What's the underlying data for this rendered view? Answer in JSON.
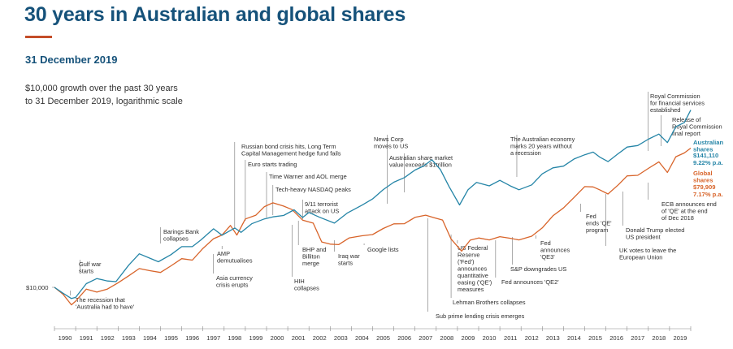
{
  "header": {
    "title": "30 years in Australian and global shares",
    "date": "31 December 2019",
    "subtitle_line1": "$10,000 growth over the past 30 years",
    "subtitle_line2": "to 31 December 2019, logarithmic scale"
  },
  "colors": {
    "title": "#16527a",
    "rule": "#c44d28",
    "australian": "#2585a7",
    "global": "#d8642a",
    "axis": "#888888",
    "annotation": "#2d2d2d"
  },
  "chart_data": {
    "type": "line",
    "scale": "log",
    "grid": false,
    "x_range": [
      1990,
      2020
    ],
    "x_ticks": [
      "1990",
      "1991",
      "1992",
      "1993",
      "1994",
      "1995",
      "1996",
      "1997",
      "1998",
      "1999",
      "2000",
      "2001",
      "2002",
      "2003",
      "2004",
      "2005",
      "2006",
      "2007",
      "2008",
      "2009",
      "2010",
      "2011",
      "2012",
      "2013",
      "2014",
      "2015",
      "2016",
      "2017",
      "2018",
      "2019"
    ],
    "y_label": "$10,000",
    "start_value": 10000,
    "series": [
      {
        "name": "Australian shares",
        "value_label": "$141,110",
        "return_label": "9.22% p.a.",
        "color": "#2585a7",
        "points": [
          [
            1990,
            10000
          ],
          [
            1990.4,
            9300
          ],
          [
            1990.8,
            8300
          ],
          [
            1991.0,
            8700
          ],
          [
            1991.5,
            10600
          ],
          [
            1992,
            11200
          ],
          [
            1992.5,
            11200
          ],
          [
            1992.9,
            10800
          ],
          [
            1993.5,
            13800
          ],
          [
            1994,
            16800
          ],
          [
            1994.5,
            15200
          ],
          [
            1994.9,
            14700
          ],
          [
            1995.5,
            16500
          ],
          [
            1996,
            18000
          ],
          [
            1996.5,
            18600
          ],
          [
            1996.9,
            20300
          ],
          [
            1997.5,
            23600
          ],
          [
            1997.9,
            22200
          ],
          [
            1998.5,
            24000
          ],
          [
            1998.8,
            22600
          ],
          [
            1999.3,
            26300
          ],
          [
            1999.9,
            27300
          ],
          [
            2000.3,
            28800
          ],
          [
            2000.8,
            29500
          ],
          [
            2001.3,
            31200
          ],
          [
            2001.7,
            28800
          ],
          [
            2002.0,
            30500
          ],
          [
            2002.5,
            28100
          ],
          [
            2003.2,
            26600
          ],
          [
            2003.8,
            29900
          ],
          [
            2004.5,
            34000
          ],
          [
            2005,
            38000
          ],
          [
            2005.5,
            42200
          ],
          [
            2006,
            48500
          ],
          [
            2006.5,
            51800
          ],
          [
            2007,
            56600
          ],
          [
            2007.4,
            62200
          ],
          [
            2007.8,
            66800
          ],
          [
            2008.2,
            57300
          ],
          [
            2008.6,
            46000
          ],
          [
            2009.1,
            33700
          ],
          [
            2009.5,
            43000
          ],
          [
            2009.9,
            48500
          ],
          [
            2010.5,
            44600
          ],
          [
            2011,
            50000
          ],
          [
            2011.5,
            45600
          ],
          [
            2011.9,
            42200
          ],
          [
            2012.5,
            47000
          ],
          [
            2013,
            54000
          ],
          [
            2013.5,
            59100
          ],
          [
            2014,
            62200
          ],
          [
            2014.5,
            66800
          ],
          [
            2015,
            72700
          ],
          [
            2015.4,
            76200
          ],
          [
            2015.7,
            68700
          ],
          [
            2016.1,
            66300
          ],
          [
            2016.6,
            74000
          ],
          [
            2017,
            80000
          ],
          [
            2017.5,
            84700
          ],
          [
            2018,
            90300
          ],
          [
            2018.5,
            98100
          ],
          [
            2018.9,
            88300
          ],
          [
            2019.3,
            108000
          ],
          [
            2019.7,
            118000
          ],
          [
            2020,
            141110
          ]
        ]
      },
      {
        "name": "Global shares",
        "value_label": "$79,909",
        "return_label": "7.17% p.a.",
        "color": "#d8642a",
        "points": [
          [
            1990,
            10000
          ],
          [
            1990.4,
            9000
          ],
          [
            1990.8,
            7600
          ],
          [
            1991.0,
            8300
          ],
          [
            1991.5,
            9600
          ],
          [
            1992,
            9300
          ],
          [
            1992.5,
            9900
          ],
          [
            1993,
            10500
          ],
          [
            1993.5,
            12000
          ],
          [
            1994,
            13300
          ],
          [
            1994.5,
            12600
          ],
          [
            1995,
            12700
          ],
          [
            1995.5,
            13700
          ],
          [
            1996,
            15200
          ],
          [
            1996.5,
            15300
          ],
          [
            1997,
            17600
          ],
          [
            1997.5,
            20700
          ],
          [
            1997.9,
            22100
          ],
          [
            1998.3,
            24700
          ],
          [
            1998.6,
            22100
          ],
          [
            1999,
            27800
          ],
          [
            1999.5,
            28900
          ],
          [
            1999.9,
            34000
          ],
          [
            2000.3,
            35000
          ],
          [
            2000.8,
            33400
          ],
          [
            2001.2,
            32500
          ],
          [
            2001.7,
            26800
          ],
          [
            2002.2,
            26200
          ],
          [
            2002.6,
            19900
          ],
          [
            2003.0,
            18700
          ],
          [
            2003.4,
            19200
          ],
          [
            2003.9,
            20900
          ],
          [
            2004.5,
            21300
          ],
          [
            2005,
            22400
          ],
          [
            2005.5,
            23800
          ],
          [
            2006,
            25700
          ],
          [
            2006.5,
            26300
          ],
          [
            2007,
            27900
          ],
          [
            2007.5,
            29600
          ],
          [
            2007.9,
            28500
          ],
          [
            2008.3,
            26800
          ],
          [
            2008.7,
            20900
          ],
          [
            2009.2,
            17100
          ],
          [
            2009.6,
            20000
          ],
          [
            2010,
            21300
          ],
          [
            2010.5,
            20000
          ],
          [
            2011,
            21300
          ],
          [
            2011.5,
            21100
          ],
          [
            2011.9,
            19900
          ],
          [
            2012.5,
            21700
          ],
          [
            2013,
            24400
          ],
          [
            2013.5,
            28600
          ],
          [
            2014,
            33300
          ],
          [
            2014.5,
            38000
          ],
          [
            2015,
            44600
          ],
          [
            2015.4,
            45600
          ],
          [
            2015.7,
            42200
          ],
          [
            2016.1,
            40400
          ],
          [
            2016.6,
            47000
          ],
          [
            2017,
            51800
          ],
          [
            2017.5,
            54000
          ],
          [
            2018,
            59100
          ],
          [
            2018.5,
            64100
          ],
          [
            2018.9,
            56600
          ],
          [
            2019.3,
            69600
          ],
          [
            2019.7,
            74000
          ],
          [
            2020,
            79909
          ]
        ]
      }
    ],
    "annotations": [
      {
        "x": 1990.75,
        "lines": [
          "The recession that",
          "'Australia had to have'"
        ]
      },
      {
        "x": 1991.2,
        "lines": [
          "Gulf war",
          "starts"
        ]
      },
      {
        "x": 1995.0,
        "lines": [
          "Barings Bank",
          "collapses"
        ]
      },
      {
        "x": 1997.5,
        "lines": [
          "Asia currency",
          "crisis erupts"
        ]
      },
      {
        "x": 1997.9,
        "lines": [
          "AMP",
          "demutualises"
        ]
      },
      {
        "x": 1998.5,
        "lines": [
          "Russian bond crisis hits, Long Term",
          "Capital Management hedge fund fails"
        ]
      },
      {
        "x": 1999.0,
        "lines": [
          "Euro starts trading"
        ]
      },
      {
        "x": 2000.0,
        "lines": [
          "Time Warner and AOL merge"
        ]
      },
      {
        "x": 2000.3,
        "lines": [
          "Tech-heavy NASDAQ peaks"
        ]
      },
      {
        "x": 2001.7,
        "lines": [
          "9/11 terrorist",
          "attack on US"
        ]
      },
      {
        "x": 2001.2,
        "lines": [
          "HIH",
          "collapses"
        ]
      },
      {
        "x": 2001.5,
        "lines": [
          "BHP and",
          "Billiton",
          "merge"
        ]
      },
      {
        "x": 2003.2,
        "lines": [
          "Iraq war",
          "starts"
        ]
      },
      {
        "x": 2004.6,
        "lines": [
          "Google lists"
        ]
      },
      {
        "x": 2005.7,
        "lines": [
          "News Corp",
          "moves to US"
        ]
      },
      {
        "x": 2006.5,
        "lines": [
          "Australian share market",
          "value exceeds $1trillion"
        ]
      },
      {
        "x": 2007.6,
        "lines": [
          "Sub prime lending crisis emerges"
        ]
      },
      {
        "x": 2008.7,
        "lines": [
          "Lehman Brothers collapses"
        ]
      },
      {
        "x": 2009.0,
        "lines": [
          "US Federal",
          "Reserve",
          "('Fed')",
          "announces",
          "quantitative",
          "easing ('QE')",
          "measures"
        ]
      },
      {
        "x": 2010.8,
        "lines": [
          "Fed announces 'QE2'"
        ]
      },
      {
        "x": 2011.6,
        "lines": [
          "S&P downgrades US"
        ]
      },
      {
        "x": 2011.8,
        "lines": [
          "The Australian economy",
          "marks 20 years without",
          "a recession"
        ]
      },
      {
        "x": 2012.7,
        "lines": [
          "Fed",
          "announces",
          "'QE3'"
        ]
      },
      {
        "x": 2014.8,
        "lines": [
          "Fed",
          "ends 'QE'",
          "program"
        ]
      },
      {
        "x": 2016.0,
        "lines": [
          "UK votes to leave the",
          "European Union"
        ]
      },
      {
        "x": 2016.8,
        "lines": [
          "Donald Trump elected",
          "US president"
        ]
      },
      {
        "x": 2018.0,
        "lines": [
          "Royal Commission",
          "for financial services",
          "established"
        ]
      },
      {
        "x": 2018.6,
        "lines": [
          "Release of",
          "Royal Commission",
          "final report"
        ]
      },
      {
        "x": 2018.0,
        "lines": [
          "ECB announces end",
          "of 'QE' at the end",
          "of Dec 2018"
        ]
      }
    ]
  }
}
